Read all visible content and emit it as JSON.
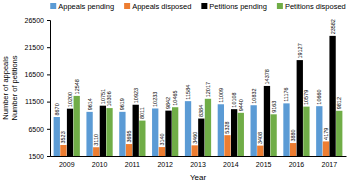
{
  "chart_data": {
    "type": "bar",
    "x_label": "Year",
    "y_label": [
      "Number of appeals",
      "Number of petitions"
    ],
    "categories": [
      "2009",
      "2010",
      "2011",
      "2012",
      "2013",
      "2014",
      "2015",
      "2016",
      "2017"
    ],
    "series": [
      {
        "name": "Appeals pending",
        "color": "#5b9bd5",
        "values": [
          8670,
          9614,
          9619,
          10233,
          11584,
          11009,
          10832,
          11176,
          10660
        ]
      },
      {
        "name": "Appeals disposed",
        "color": "#ed7d31",
        "values": [
          3523,
          3110,
          3695,
          3140,
          3460,
          5328,
          3408,
          3880,
          4179
        ]
      },
      {
        "name": "Petitions pending",
        "color": "#000000",
        "values": [
          10200,
          10751,
          10923,
          9842,
          8384,
          10108,
          14378,
          19127,
          23582
        ]
      },
      {
        "name": "Petitions disposed",
        "color": "#70ad47",
        "values": [
          12548,
          10306,
          8011,
          10465,
          12017,
          9440,
          9163,
          10579,
          9812
        ]
      }
    ],
    "ylim": [
      1500,
      26500
    ],
    "yticks": [
      1500,
      6500,
      11500,
      16500,
      21500,
      26500
    ],
    "grid": false,
    "legend": "top",
    "data_labels": true
  }
}
